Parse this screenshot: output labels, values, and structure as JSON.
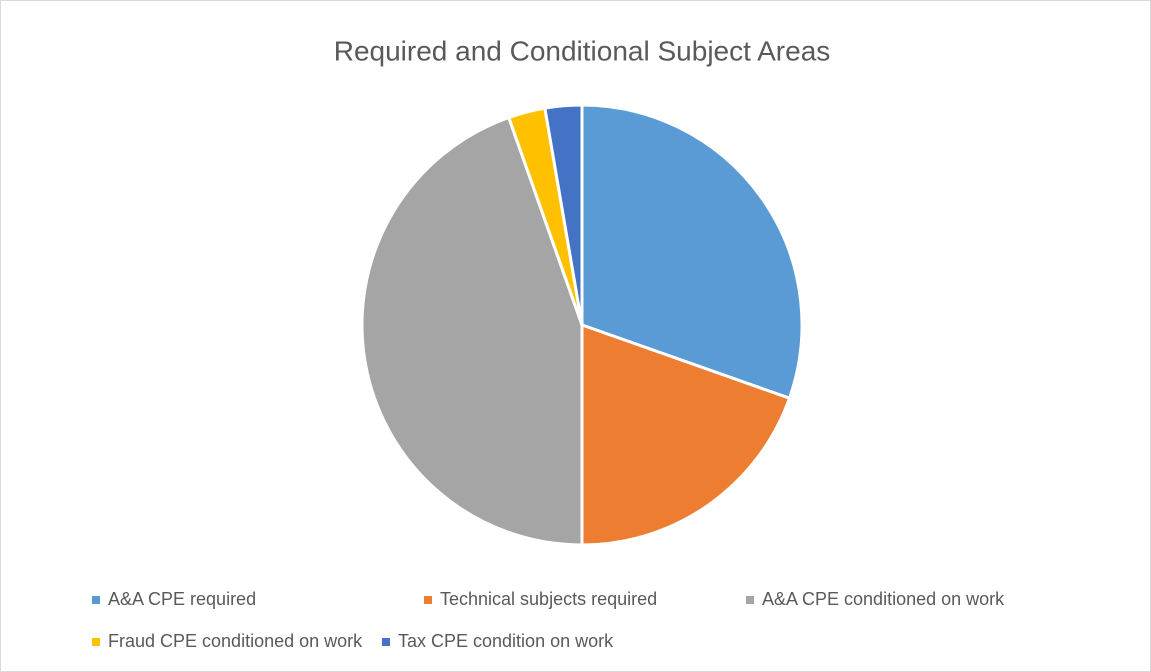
{
  "chart_data": {
    "type": "pie",
    "title": "Required and Conditional Subject Areas",
    "categories": [
      "A&A CPE required",
      "Technical subjects required",
      "A&A CPE conditioned on work",
      "Fraud CPE conditioned on work",
      "Tax CPE condition on work"
    ],
    "values": [
      30.4,
      19.6,
      44.6,
      2.7,
      2.7
    ],
    "colors": [
      "#5b9bd5",
      "#ed7d31",
      "#a5a5a5",
      "#ffc000",
      "#4472c4"
    ],
    "legend": "bottom"
  }
}
